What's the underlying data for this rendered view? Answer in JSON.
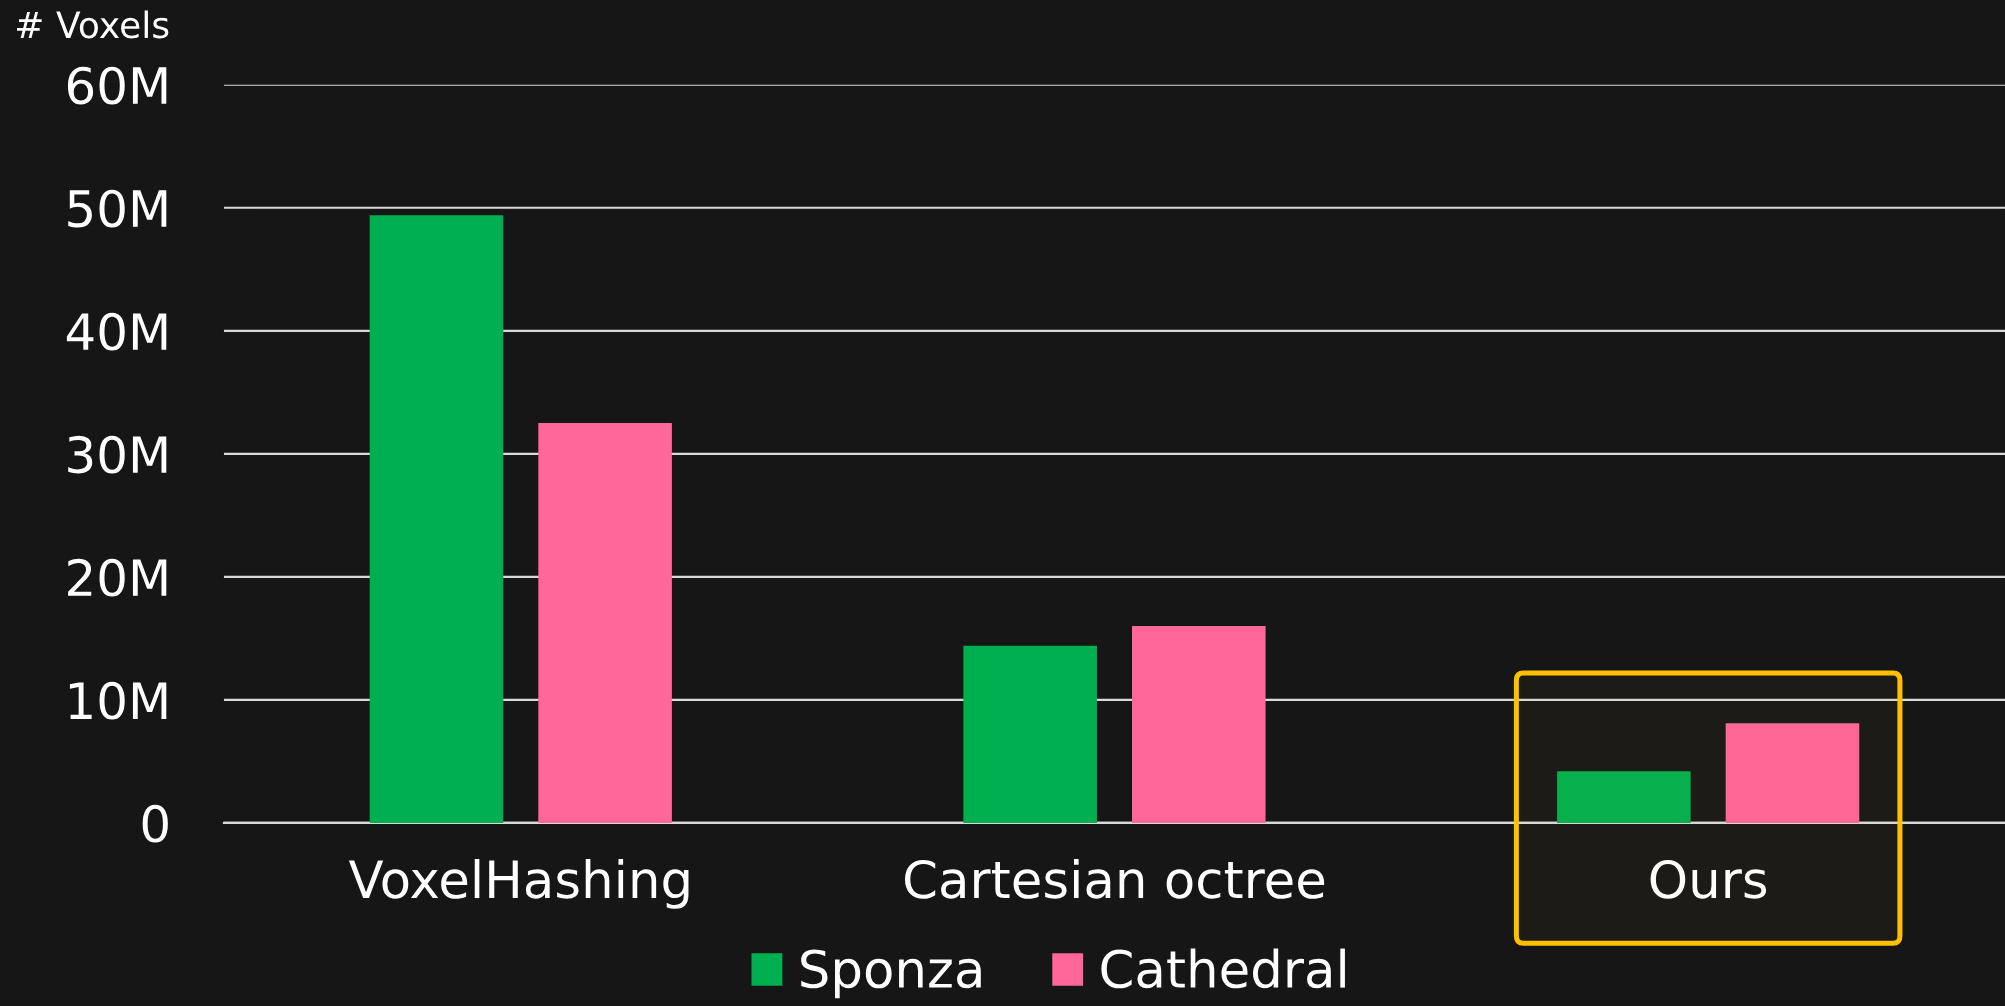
{
  "chart_data": {
    "type": "bar",
    "ylabel": "# Voxels",
    "categories": [
      "VoxelHashing",
      "Cartesian octree",
      "Ours"
    ],
    "series": [
      {
        "name": "Sponza",
        "color": "#00b050",
        "values": [
          49.4,
          14.4,
          4.2
        ]
      },
      {
        "name": "Cathedral",
        "color": "#ff6699",
        "values": [
          32.5,
          16.0,
          8.1
        ]
      }
    ],
    "ylim": [
      0,
      60
    ],
    "yticks": [
      0,
      {
        "value": 10,
        "label": "10M"
      },
      {
        "value": 20,
        "label": "20M"
      },
      {
        "value": 30,
        "label": "30M"
      },
      {
        "value": 40,
        "label": "40M"
      },
      {
        "value": 50,
        "label": "50M"
      },
      {
        "value": 60,
        "label": "60M"
      }
    ],
    "grid": "y",
    "legend": "bottom",
    "bands": [
      {
        "axis": "x",
        "from": "Ours",
        "to": "Ours",
        "color": "#ffc000"
      }
    ]
  }
}
